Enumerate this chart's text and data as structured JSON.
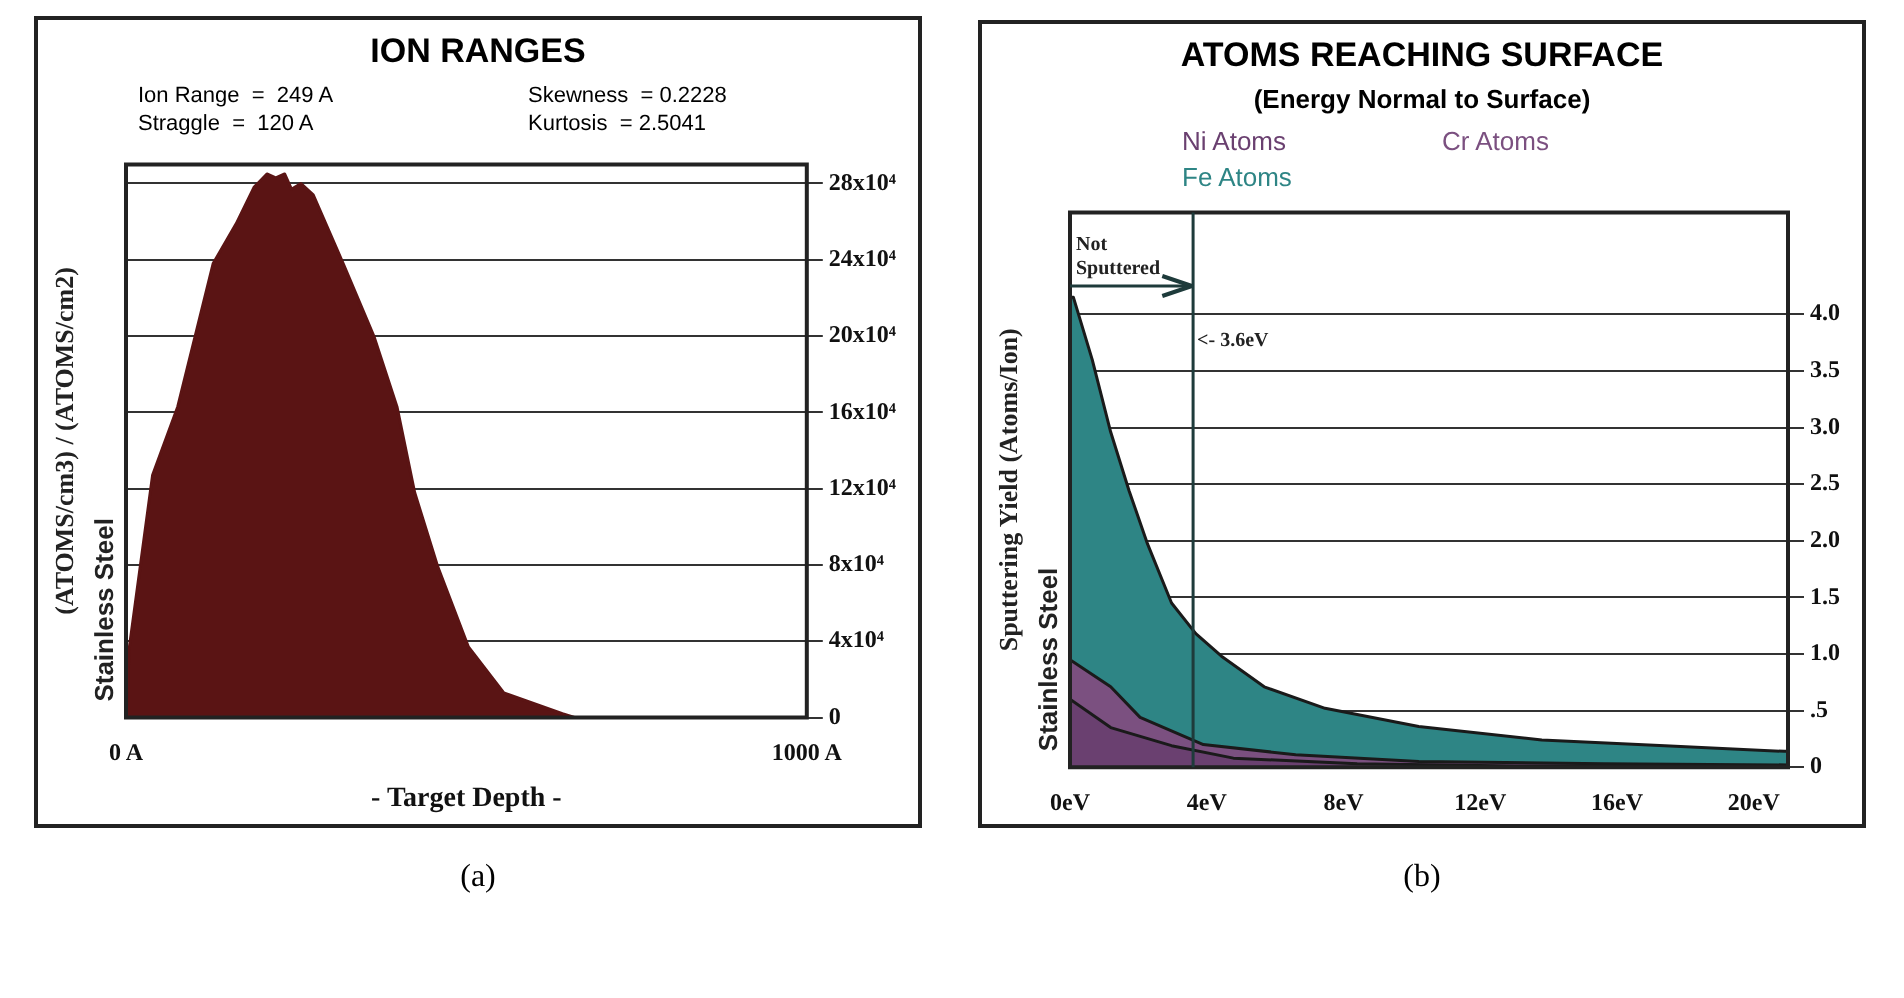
{
  "chart_data": [
    {
      "type": "area",
      "title": "ION RANGES",
      "xlabel": "- Target Depth -",
      "ylabel": "(ATOMS/cm3) / (ATOMS/cm2)",
      "annotations": [
        "Ion Range  =  249 A",
        "Skewness  = 0.2228",
        "Straggle  =  120 A",
        "Kurtosis  = 2.5041",
        "Stainless Steel",
        "(a)"
      ],
      "series": [
        {
          "color": "#5a1414",
          "x": [
            0,
            5,
            39,
            76,
            128,
            162,
            188,
            207,
            220,
            233,
            243,
            257,
            275,
            319,
            364,
            398,
            424,
            458,
            503,
            555,
            641,
            660,
            1000
          ],
          "values": [
            0,
            37000,
            127000,
            163000,
            238000,
            259000,
            278000,
            285000,
            283000,
            285000,
            277000,
            280000,
            274000,
            238000,
            200000,
            163000,
            118000,
            79000,
            37000,
            13000,
            2000,
            0,
            0
          ]
        }
      ],
      "xlim": [
        0,
        1000
      ],
      "xticks": [
        {
          "value": 0,
          "label": "0 A"
        },
        {
          "value": 1000,
          "label": "1000 A"
        }
      ],
      "ylim": [
        0,
        290000
      ],
      "yticks": [
        0,
        {
          "value": 40000,
          "label": "4x10⁴"
        },
        {
          "value": 80000,
          "label": "8x10⁴"
        },
        {
          "value": 120000,
          "label": "12x10⁴"
        },
        {
          "value": 160000,
          "label": "16x10⁴"
        },
        {
          "value": 200000,
          "label": "20x10⁴"
        },
        {
          "value": 240000,
          "label": "24x10⁴"
        },
        {
          "value": 280000,
          "label": "28x10⁴"
        }
      ],
      "grid": "y"
    },
    {
      "type": "area",
      "title": "ATOMS REACHING SURFACE",
      "subtitle": "(Energy Normal to Surface)",
      "ylabel": "Sputtering Yield (Atoms/Ion)",
      "annotations": [
        {
          "text": "Not Sputtered",
          "x": 3.6,
          "y": 4.25
        },
        "Stainless Steel",
        "(b)"
      ],
      "series": [
        {
          "name": "Ni Atoms",
          "color": "#6a4070",
          "x": [
            0,
            1.19,
            2.97,
            4.78,
            8.4,
            13,
            21
          ],
          "values": [
            0.6,
            0.35,
            0.19,
            0.08,
            0.03,
            0.01,
            0.01
          ]
        },
        {
          "name": "Cr Atoms",
          "color": "#7b5080",
          "x": [
            0,
            1.19,
            2.05,
            3.9,
            6.6,
            10.2,
            15.6,
            21
          ],
          "values": [
            0.95,
            0.71,
            0.44,
            0.2,
            0.11,
            0.05,
            0.03,
            0.02
          ]
        },
        {
          "name": "Fe Atoms",
          "color": "#2e8585",
          "x": [
            0,
            0.1,
            0.65,
            1.19,
            1.73,
            2.27,
            2.97,
            3.68,
            4.43,
            5.68,
            7.46,
            10.2,
            13.8,
            17.4,
            20.9,
            21
          ],
          "values": [
            4.15,
            4.15,
            3.6,
            2.96,
            2.44,
            1.97,
            1.45,
            1.18,
            0.98,
            0.71,
            0.52,
            0.36,
            0.24,
            0.19,
            0.14,
            0.14
          ]
        }
      ],
      "xlim": [
        0,
        21
      ],
      "xticks": [
        {
          "value": 0,
          "label": "0eV"
        },
        {
          "value": 4,
          "label": "4eV"
        },
        {
          "value": 8,
          "label": "8eV"
        },
        {
          "value": 12,
          "label": "12eV"
        },
        {
          "value": 16,
          "label": "16eV"
        },
        {
          "value": 20,
          "label": "20eV"
        }
      ],
      "ylim": [
        0,
        4.9
      ],
      "yticks": [
        0,
        {
          "value": 0.5,
          "label": ".5"
        },
        {
          "value": 1,
          "label": "1.0"
        },
        {
          "value": 1.5,
          "label": "1.5"
        },
        {
          "value": 2,
          "label": "2.0"
        },
        {
          "value": 2.5,
          "label": "2.5"
        },
        {
          "value": 3,
          "label": "3.0"
        },
        {
          "value": 3.5,
          "label": "3.5"
        },
        {
          "value": 4,
          "label": "4.0"
        }
      ],
      "ref_lines": [
        {
          "axis": "x",
          "value": 3.6,
          "label": "<- 3.6eV"
        }
      ],
      "grid": "y",
      "legend": "top"
    }
  ]
}
